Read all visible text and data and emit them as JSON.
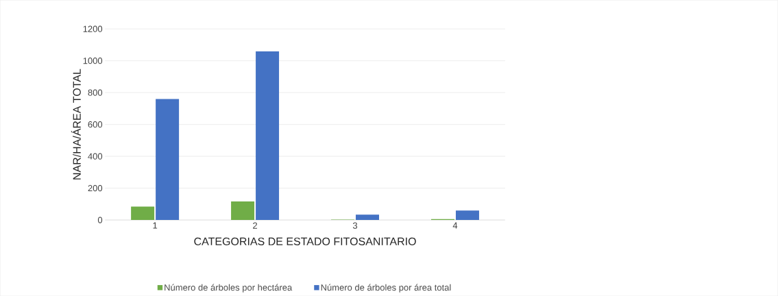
{
  "chart_data": {
    "type": "bar",
    "xlabel": "CATEGORIAS DE ESTADO FITOSANITARIO",
    "ylabel": "NAR/HA/ÁREA TOTAL",
    "categories": [
      "1",
      "2",
      "3",
      "4"
    ],
    "series": [
      {
        "name": "Número de árboles por hectárea",
        "color": "#70ad47",
        "values": [
          84,
          117,
          3,
          6
        ]
      },
      {
        "name": "Número de árboles por área total",
        "color": "#4472c4",
        "values": [
          760,
          1059,
          34,
          59
        ]
      }
    ],
    "ylim": [
      0,
      1200
    ],
    "yticks": [
      0,
      200,
      400,
      600,
      800,
      1000,
      1200
    ],
    "grid": "y",
    "legend": "bottom"
  }
}
